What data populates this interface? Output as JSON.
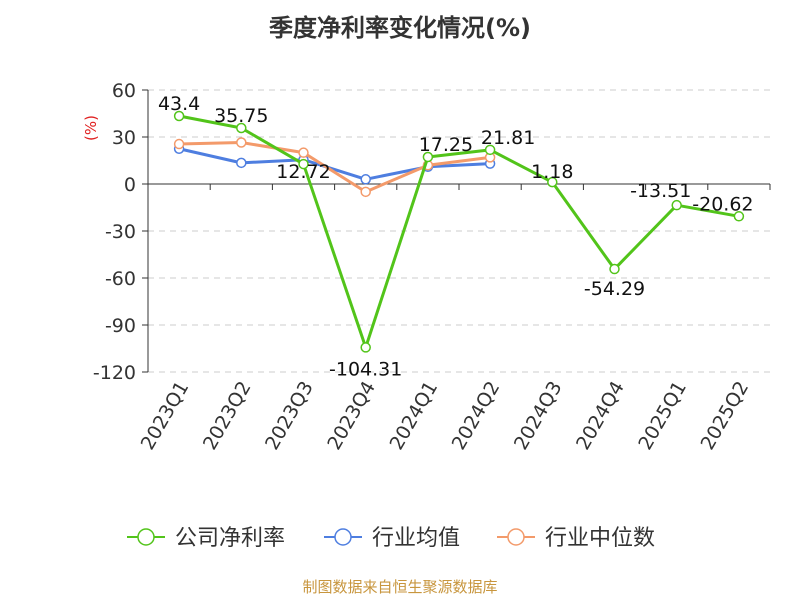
{
  "chart_data": {
    "type": "line",
    "title": "季度净利率变化情况(%)",
    "ylabel": "(%)",
    "xlabel": "",
    "ylim": [
      -120,
      60
    ],
    "yticks": [
      60,
      30,
      0,
      -30,
      -60,
      -90,
      -120
    ],
    "grid": true,
    "legend_position": "bottom",
    "categories": [
      "2023Q1",
      "2023Q2",
      "2023Q3",
      "2023Q4",
      "2024Q1",
      "2024Q2",
      "2024Q3",
      "2024Q4",
      "2025Q1",
      "2025Q2"
    ],
    "series": [
      {
        "name": "公司净利率",
        "color": "#52c41a",
        "values": [
          43.4,
          35.75,
          12.72,
          -104.31,
          17.25,
          21.81,
          1.18,
          -54.29,
          -13.51,
          -20.62
        ],
        "labels": [
          "43.4",
          "35.75",
          "12.72",
          "-104.31",
          "17.25",
          "21.81",
          "1.18",
          "-54.29",
          "-13.51",
          "-20.62"
        ]
      },
      {
        "name": "行业均值",
        "color": "#4e7ee0",
        "values": [
          22.5,
          13.5,
          15.5,
          3,
          11,
          13,
          null,
          null,
          null,
          null
        ]
      },
      {
        "name": "行业中位数",
        "color": "#f39a6a",
        "values": [
          25.5,
          26.5,
          20,
          -5,
          12,
          17,
          null,
          null,
          null,
          null
        ]
      }
    ]
  },
  "footer": {
    "source": "制图数据来自恒生聚源数据库"
  }
}
